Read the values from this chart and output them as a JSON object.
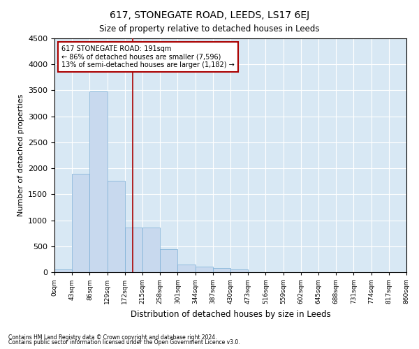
{
  "title": "617, STONEGATE ROAD, LEEDS, LS17 6EJ",
  "subtitle": "Size of property relative to detached houses in Leeds",
  "xlabel": "Distribution of detached houses by size in Leeds",
  "ylabel": "Number of detached properties",
  "footnote1": "Contains HM Land Registry data © Crown copyright and database right 2024.",
  "footnote2": "Contains public sector information licensed under the Open Government Licence v3.0.",
  "annotation_line1": "617 STONEGATE ROAD: 191sqm",
  "annotation_line2": "← 86% of detached houses are smaller (7,596)",
  "annotation_line3": "13% of semi-detached houses are larger (1,182) →",
  "bar_color": "#c8d9ee",
  "bar_edge_color": "#7aaed6",
  "vline_color": "#aa0000",
  "annotation_box_color": "#aa0000",
  "background_color": "#d8e8f4",
  "bin_labels": [
    "0sqm",
    "43sqm",
    "86sqm",
    "129sqm",
    "172sqm",
    "215sqm",
    "258sqm",
    "301sqm",
    "344sqm",
    "387sqm",
    "430sqm",
    "473sqm",
    "516sqm",
    "559sqm",
    "602sqm",
    "645sqm",
    "688sqm",
    "731sqm",
    "774sqm",
    "817sqm",
    "860sqm"
  ],
  "bar_values": [
    50,
    1900,
    3480,
    1760,
    855,
    855,
    440,
    150,
    105,
    75,
    58,
    0,
    0,
    0,
    0,
    0,
    0,
    0,
    0,
    0
  ],
  "bin_edges": [
    0,
    43,
    86,
    129,
    172,
    215,
    258,
    301,
    344,
    387,
    430,
    473,
    516,
    559,
    602,
    645,
    688,
    731,
    774,
    817,
    860
  ],
  "vline_x": 191,
  "ylim": [
    0,
    4500
  ],
  "yticks": [
    0,
    500,
    1000,
    1500,
    2000,
    2500,
    3000,
    3500,
    4000,
    4500
  ]
}
